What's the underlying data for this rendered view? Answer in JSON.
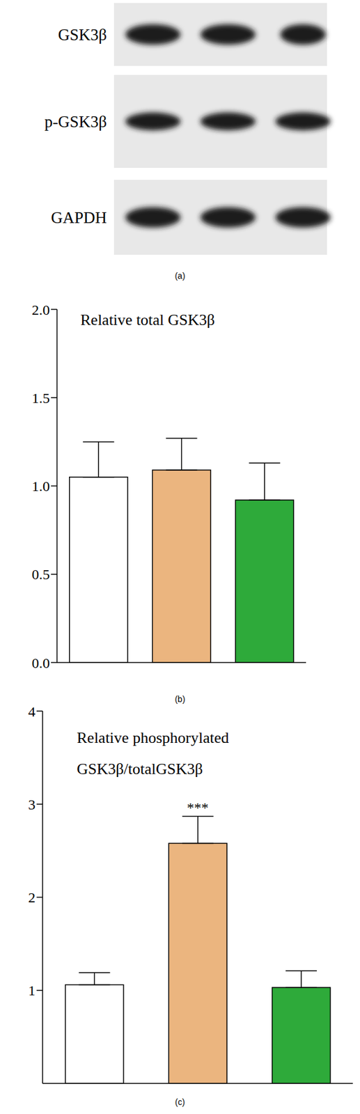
{
  "blot": {
    "label": "(a)",
    "rows": [
      "GSK3β",
      "p-GSK3β",
      "GAPDH"
    ]
  },
  "chart_data": [
    {
      "type": "bar",
      "label": "(b)",
      "title": "Relative total GSK3β",
      "categories": [
        null,
        null,
        null
      ],
      "values": [
        1.05,
        1.09,
        0.92
      ],
      "errors": [
        0.2,
        0.18,
        0.21
      ],
      "colors": [
        "#ffffff",
        "#ebb57f",
        "#2eaa3a"
      ],
      "ylim": [
        0,
        2
      ],
      "yticks": [
        {
          "value": 0,
          "label": "0.0"
        },
        0.5,
        {
          "value": 1,
          "label": "1.0"
        },
        1.5,
        {
          "value": 2,
          "label": "2.0"
        }
      ],
      "tick_labels": "y"
    },
    {
      "type": "bar",
      "label": "(c)",
      "title": "Relative phosphorylated\nGSK3β/totalGSK3β",
      "categories": [
        null,
        null,
        null
      ],
      "values": [
        1.06,
        2.58,
        1.03
      ],
      "errors": [
        0.13,
        0.29,
        0.18
      ],
      "colors": [
        "#ffffff",
        "#ebb57f",
        "#2eaa3a"
      ],
      "ylim": [
        0,
        4
      ],
      "yticks": [
        1,
        2,
        3,
        4
      ],
      "annotations": [
        {
          "text": "***",
          "index": 1
        }
      ],
      "tick_labels": "y"
    }
  ]
}
